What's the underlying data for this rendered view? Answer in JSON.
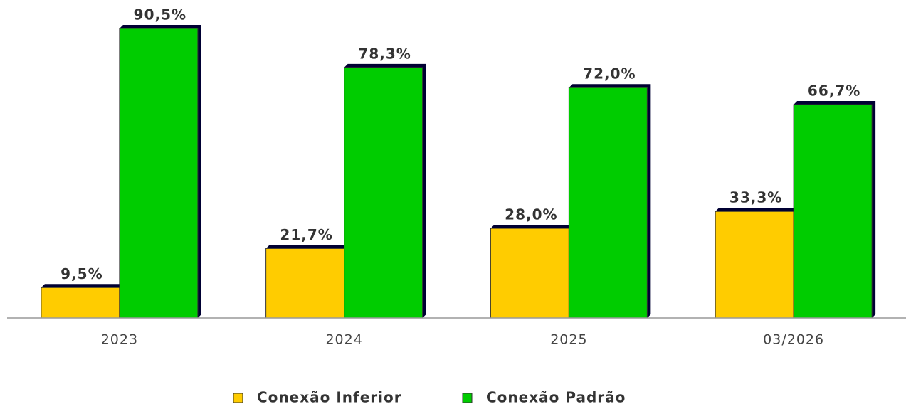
{
  "chart_data": {
    "type": "bar",
    "categories": [
      "2023",
      "2024",
      "2025",
      "03/2026"
    ],
    "series": [
      {
        "name": "Conexão Inferior",
        "color": "#ffcc00",
        "values": [
          9.5,
          21.7,
          28.0,
          33.3
        ],
        "value_labels": [
          "9,5%",
          "21,7%",
          "28,0%",
          "33,3%"
        ]
      },
      {
        "name": "Conexão Padrão",
        "color": "#00cc00",
        "values": [
          90.5,
          78.3,
          72.0,
          66.7
        ],
        "value_labels": [
          "90,5%",
          "78,3%",
          "72,0%",
          "66,7%"
        ]
      }
    ]
  }
}
